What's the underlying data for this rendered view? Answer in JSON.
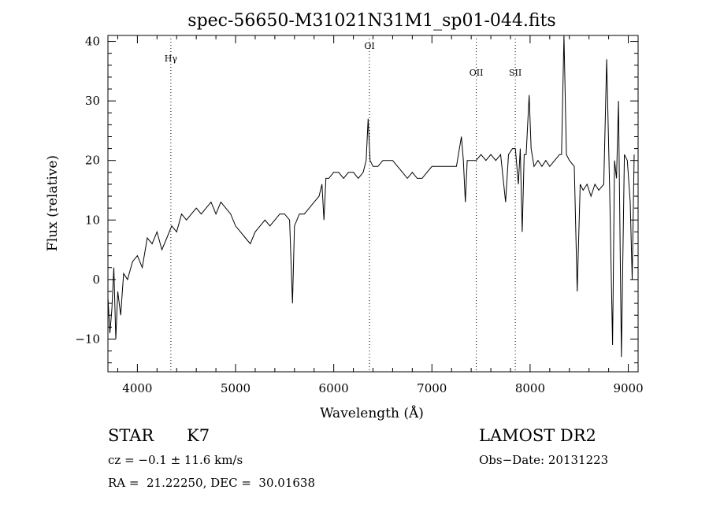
{
  "chart_data": {
    "type": "line",
    "title": "spec-56650-M31021N31M1_sp01-044.fits",
    "xlabel": "Wavelength (Å)",
    "ylabel": "Flux (relative)",
    "xlim": [
      3700,
      9100
    ],
    "ylim": [
      -15.5,
      41
    ],
    "xticks": [
      4000,
      5000,
      6000,
      7000,
      8000,
      9000
    ],
    "yticks": [
      -10,
      0,
      10,
      20,
      30,
      40
    ],
    "grid": false,
    "line_markers": [
      {
        "label": "Hγ",
        "x": 4341
      },
      {
        "label": "OI",
        "x": 6364
      },
      {
        "label": "OII",
        "x": 7452
      },
      {
        "label": "SII",
        "x": 7849
      }
    ],
    "series": [
      {
        "values": [
          [
            3700,
            -3
          ],
          [
            3720,
            -9
          ],
          [
            3740,
            -5
          ],
          [
            3760,
            2
          ],
          [
            3780,
            -10
          ],
          [
            3800,
            -2
          ],
          [
            3830,
            -6
          ],
          [
            3860,
            1
          ],
          [
            3900,
            0
          ],
          [
            3950,
            3
          ],
          [
            4000,
            4
          ],
          [
            4050,
            2
          ],
          [
            4100,
            7
          ],
          [
            4150,
            6
          ],
          [
            4200,
            8
          ],
          [
            4250,
            5
          ],
          [
            4300,
            7
          ],
          [
            4350,
            9
          ],
          [
            4400,
            8
          ],
          [
            4450,
            11
          ],
          [
            4500,
            10
          ],
          [
            4550,
            11
          ],
          [
            4600,
            12
          ],
          [
            4650,
            11
          ],
          [
            4700,
            12
          ],
          [
            4750,
            13
          ],
          [
            4800,
            11
          ],
          [
            4850,
            13
          ],
          [
            4900,
            12
          ],
          [
            4950,
            11
          ],
          [
            5000,
            9
          ],
          [
            5050,
            8
          ],
          [
            5100,
            7
          ],
          [
            5150,
            6
          ],
          [
            5200,
            8
          ],
          [
            5250,
            9
          ],
          [
            5300,
            10
          ],
          [
            5350,
            9
          ],
          [
            5400,
            10
          ],
          [
            5450,
            11
          ],
          [
            5500,
            11
          ],
          [
            5550,
            10
          ],
          [
            5580,
            -4
          ],
          [
            5600,
            9
          ],
          [
            5650,
            11
          ],
          [
            5700,
            11
          ],
          [
            5750,
            12
          ],
          [
            5800,
            13
          ],
          [
            5850,
            14
          ],
          [
            5880,
            16
          ],
          [
            5900,
            10
          ],
          [
            5920,
            17
          ],
          [
            5950,
            17
          ],
          [
            6000,
            18
          ],
          [
            6050,
            18
          ],
          [
            6100,
            17
          ],
          [
            6150,
            18
          ],
          [
            6200,
            18
          ],
          [
            6250,
            17
          ],
          [
            6300,
            18
          ],
          [
            6330,
            20
          ],
          [
            6350,
            27
          ],
          [
            6370,
            20
          ],
          [
            6400,
            19
          ],
          [
            6450,
            19
          ],
          [
            6500,
            20
          ],
          [
            6550,
            20
          ],
          [
            6600,
            20
          ],
          [
            6650,
            19
          ],
          [
            6700,
            18
          ],
          [
            6750,
            17
          ],
          [
            6800,
            18
          ],
          [
            6850,
            17
          ],
          [
            6900,
            17
          ],
          [
            6950,
            18
          ],
          [
            7000,
            19
          ],
          [
            7050,
            19
          ],
          [
            7100,
            19
          ],
          [
            7150,
            19
          ],
          [
            7200,
            19
          ],
          [
            7250,
            19
          ],
          [
            7300,
            24
          ],
          [
            7320,
            20
          ],
          [
            7340,
            13
          ],
          [
            7360,
            20
          ],
          [
            7400,
            20
          ],
          [
            7450,
            20
          ],
          [
            7500,
            21
          ],
          [
            7550,
            20
          ],
          [
            7600,
            21
          ],
          [
            7650,
            20
          ],
          [
            7700,
            21
          ],
          [
            7750,
            13
          ],
          [
            7780,
            21
          ],
          [
            7820,
            22
          ],
          [
            7850,
            22
          ],
          [
            7880,
            16
          ],
          [
            7900,
            22
          ],
          [
            7920,
            8
          ],
          [
            7940,
            21
          ],
          [
            7960,
            21
          ],
          [
            7990,
            31
          ],
          [
            8010,
            22
          ],
          [
            8040,
            19
          ],
          [
            8080,
            20
          ],
          [
            8120,
            19
          ],
          [
            8160,
            20
          ],
          [
            8200,
            19
          ],
          [
            8250,
            20
          ],
          [
            8300,
            21
          ],
          [
            8320,
            21
          ],
          [
            8345,
            41
          ],
          [
            8370,
            21
          ],
          [
            8400,
            20
          ],
          [
            8450,
            19
          ],
          [
            8480,
            -2
          ],
          [
            8510,
            16
          ],
          [
            8540,
            15
          ],
          [
            8580,
            16
          ],
          [
            8620,
            14
          ],
          [
            8660,
            16
          ],
          [
            8700,
            15
          ],
          [
            8750,
            16
          ],
          [
            8780,
            37
          ],
          [
            8810,
            15
          ],
          [
            8840,
            -11
          ],
          [
            8860,
            20
          ],
          [
            8880,
            17
          ],
          [
            8900,
            30
          ],
          [
            8930,
            -13
          ],
          [
            8960,
            21
          ],
          [
            8990,
            20
          ],
          [
            9020,
            13
          ],
          [
            9040,
            0
          ],
          [
            9060,
            21
          ]
        ]
      }
    ]
  },
  "info": {
    "object_class": "STAR",
    "subclass": "K7",
    "survey": "LAMOST DR2",
    "cz": "cz = −0.1 ± 11.6 km/s",
    "obs_date": "Obs−Date: 20131223",
    "coords": "RA =  21.22250, DEC =  30.01638"
  }
}
